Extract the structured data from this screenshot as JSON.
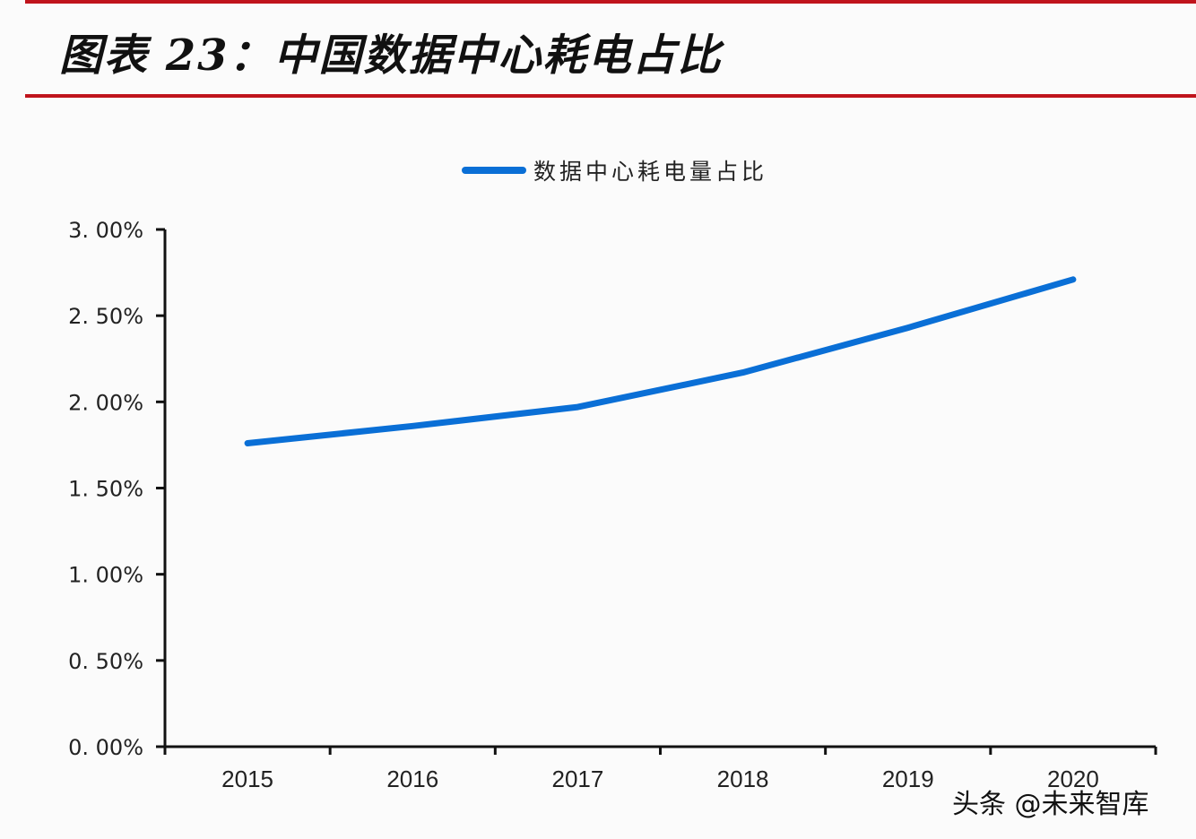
{
  "header": {
    "title": "图表 23：中国数据中心耗电占比"
  },
  "watermark": "头条 @未来智库",
  "colors": {
    "accent_rule": "#c0141c",
    "series": "#0a6fd6",
    "axis": "#111111"
  },
  "chart_data": {
    "type": "line",
    "title": "图表 23：中国数据中心耗电占比",
    "xlabel": "",
    "ylabel": "",
    "categories": [
      "2015",
      "2016",
      "2017",
      "2018",
      "2019",
      "2020"
    ],
    "series": [
      {
        "name": "数据中心耗电量占比",
        "values": [
          1.76,
          1.86,
          1.97,
          2.17,
          2.43,
          2.71
        ],
        "unit": "%"
      }
    ],
    "ylim": [
      0,
      3
    ],
    "yticks": [
      "0.00%",
      "0.50%",
      "1.00%",
      "1.50%",
      "2.00%",
      "2.50%",
      "3.00%"
    ],
    "grid": false,
    "legend_position": "top"
  }
}
